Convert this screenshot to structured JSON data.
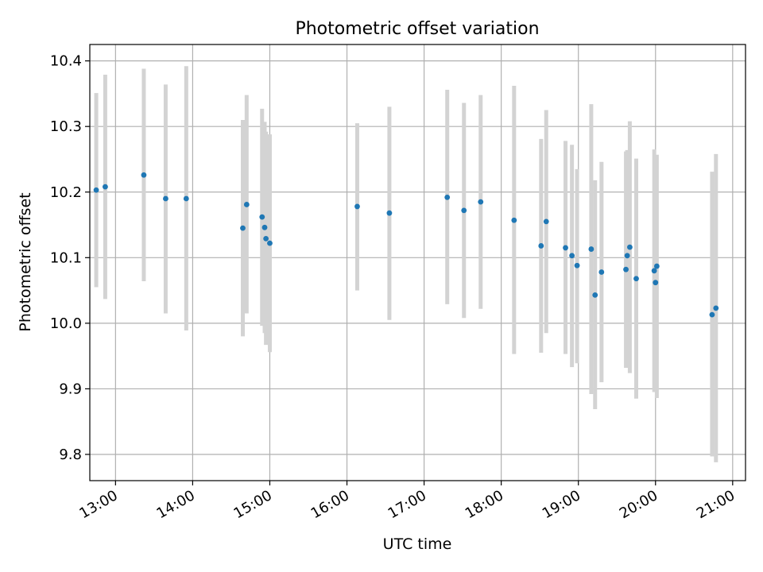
{
  "chart_data": {
    "type": "scatter",
    "title": "Photometric offset variation",
    "xlabel": "UTC time",
    "ylabel": "Photometric offset",
    "xlim": [
      "12:40",
      "21:10"
    ],
    "ylim": [
      9.76,
      10.425
    ],
    "x_ticks": [
      "13:00",
      "14:00",
      "15:00",
      "16:00",
      "17:00",
      "18:00",
      "19:00",
      "20:00",
      "21:00"
    ],
    "y_ticks": [
      "9.8",
      "9.9",
      "10.0",
      "10.1",
      "10.2",
      "10.3",
      "10.4"
    ],
    "grid": true,
    "marker_color": "#1f77b4",
    "errorbar_color": "#d3d3d3",
    "points": [
      {
        "x": "12:45",
        "y": 10.203,
        "ylow": 10.055,
        "yhigh": 10.351
      },
      {
        "x": "12:52",
        "y": 10.208,
        "ylow": 10.037,
        "yhigh": 10.379
      },
      {
        "x": "13:22",
        "y": 10.226,
        "ylow": 10.064,
        "yhigh": 10.388
      },
      {
        "x": "13:39",
        "y": 10.19,
        "ylow": 10.015,
        "yhigh": 10.364
      },
      {
        "x": "13:55",
        "y": 10.19,
        "ylow": 9.989,
        "yhigh": 10.392
      },
      {
        "x": "14:39",
        "y": 10.145,
        "ylow": 9.98,
        "yhigh": 10.31
      },
      {
        "x": "14:42",
        "y": 10.181,
        "ylow": 10.015,
        "yhigh": 10.348
      },
      {
        "x": "14:54",
        "y": 10.162,
        "ylow": 9.996,
        "yhigh": 10.327
      },
      {
        "x": "14:56",
        "y": 10.146,
        "ylow": 9.985,
        "yhigh": 10.307
      },
      {
        "x": "14:57",
        "y": 10.129,
        "ylow": 9.967,
        "yhigh": 10.292
      },
      {
        "x": "15:00",
        "y": 10.122,
        "ylow": 9.956,
        "yhigh": 10.288
      },
      {
        "x": "16:08",
        "y": 10.178,
        "ylow": 10.05,
        "yhigh": 10.305
      },
      {
        "x": "16:33",
        "y": 10.168,
        "ylow": 10.005,
        "yhigh": 10.33
      },
      {
        "x": "17:18",
        "y": 10.192,
        "ylow": 10.029,
        "yhigh": 10.356
      },
      {
        "x": "17:31",
        "y": 10.172,
        "ylow": 10.008,
        "yhigh": 10.336
      },
      {
        "x": "17:44",
        "y": 10.185,
        "ylow": 10.022,
        "yhigh": 10.348
      },
      {
        "x": "18:10",
        "y": 10.157,
        "ylow": 9.953,
        "yhigh": 10.362
      },
      {
        "x": "18:31",
        "y": 10.118,
        "ylow": 9.955,
        "yhigh": 10.281
      },
      {
        "x": "18:35",
        "y": 10.155,
        "ylow": 9.985,
        "yhigh": 10.325
      },
      {
        "x": "18:50",
        "y": 10.115,
        "ylow": 9.953,
        "yhigh": 10.278
      },
      {
        "x": "18:55",
        "y": 10.103,
        "ylow": 9.933,
        "yhigh": 10.272
      },
      {
        "x": "18:59",
        "y": 10.088,
        "ylow": 9.939,
        "yhigh": 10.235
      },
      {
        "x": "19:10",
        "y": 10.113,
        "ylow": 9.892,
        "yhigh": 10.334
      },
      {
        "x": "19:13",
        "y": 10.043,
        "ylow": 9.869,
        "yhigh": 10.218
      },
      {
        "x": "19:18",
        "y": 10.078,
        "ylow": 9.91,
        "yhigh": 10.246
      },
      {
        "x": "19:37",
        "y": 10.082,
        "ylow": 9.932,
        "yhigh": 10.262
      },
      {
        "x": "19:38",
        "y": 10.103,
        "ylow": 9.941,
        "yhigh": 10.264
      },
      {
        "x": "19:40",
        "y": 10.116,
        "ylow": 9.924,
        "yhigh": 10.308
      },
      {
        "x": "19:45",
        "y": 10.068,
        "ylow": 9.885,
        "yhigh": 10.251
      },
      {
        "x": "19:59",
        "y": 10.08,
        "ylow": 9.895,
        "yhigh": 10.265
      },
      {
        "x": "20:00",
        "y": 10.062,
        "ylow": 9.917,
        "yhigh": 10.207
      },
      {
        "x": "20:01",
        "y": 10.087,
        "ylow": 9.886,
        "yhigh": 10.257
      },
      {
        "x": "20:44",
        "y": 10.013,
        "ylow": 9.797,
        "yhigh": 10.231
      },
      {
        "x": "20:47",
        "y": 10.023,
        "ylow": 9.788,
        "yhigh": 10.258
      }
    ]
  }
}
